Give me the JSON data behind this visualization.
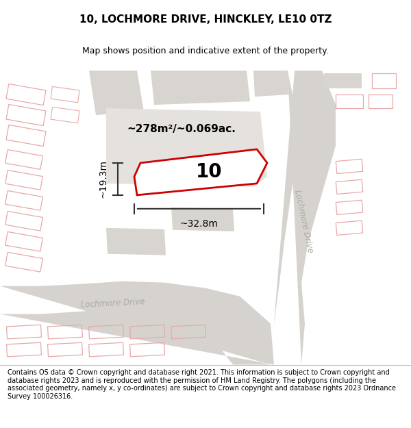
{
  "title": "10, LOCHMORE DRIVE, HINCKLEY, LE10 0TZ",
  "subtitle": "Map shows position and indicative extent of the property.",
  "area_label": "~278m²/~0.069ac.",
  "width_label": "~32.8m",
  "height_label": "~19.3m",
  "property_number": "10",
  "footer_text": "Contains OS data © Crown copyright and database right 2021. This information is subject to Crown copyright and database rights 2023 and is reproduced with the permission of HM Land Registry. The polygons (including the associated geometry, namely x, y co-ordinates) are subject to Crown copyright and database rights 2023 Ordnance Survey 100026316.",
  "map_bg": "#f0eeeb",
  "road_fill": "#d6d3cf",
  "building_fill": "#d8d5d0",
  "building_outline": "#e8a8a8",
  "property_fill": "#ffffff",
  "property_outline": "#cc0000",
  "road_label_color": "#aaaaaa",
  "title_fontsize": 11,
  "subtitle_fontsize": 9,
  "footer_fontsize": 7
}
